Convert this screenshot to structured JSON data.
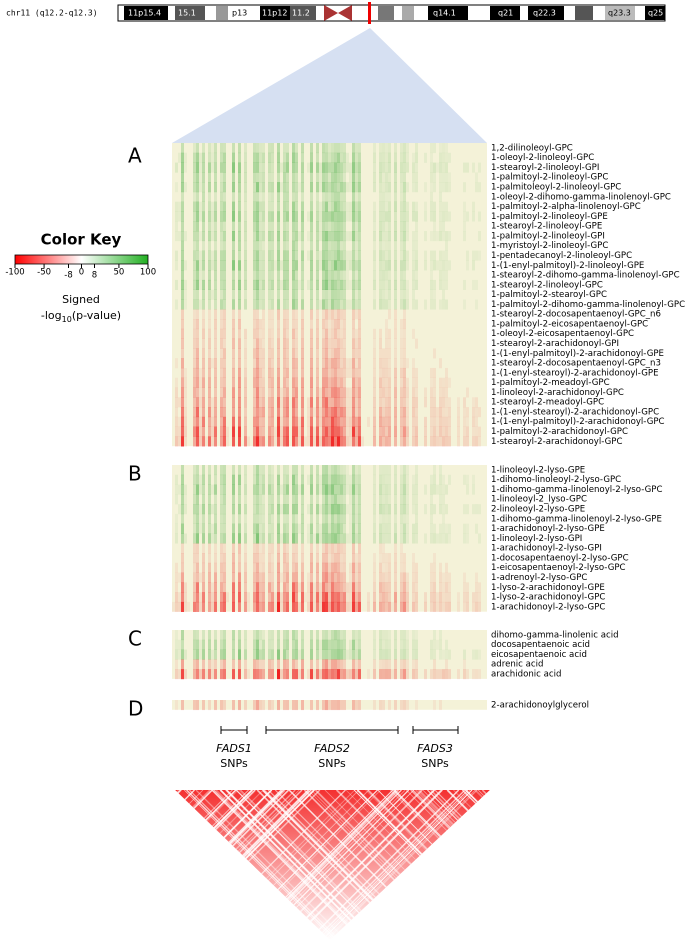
{
  "ideogram": {
    "label": "chr11 (q12.2-q12.3)",
    "bands": [
      "11p15.4",
      "15.1",
      "p13",
      "11p12",
      "11.2",
      "q14.1",
      "q21",
      "q22.3",
      "q23.3",
      "q25"
    ]
  },
  "color_key": {
    "title": "Color Key",
    "ticks": [
      -100,
      -50,
      -8,
      0,
      8,
      50,
      100
    ],
    "caption_line1": "Signed",
    "caption_line2": {
      "prefix": "-log",
      "subscript": "10",
      "suffix": "(p-value)"
    }
  },
  "panels": [
    {
      "label": "A",
      "rows": [
        "1,2-dilinoleoyl-GPC",
        "1-oleoyl-2-linoleoyl-GPC",
        "1-stearoyl-2-linoleoyl-GPI",
        "1-palmitoyl-2-linoleoyl-GPC",
        "1-palmitoleoyl-2-linoleoyl-GPC",
        "1-oleoyl-2-dihomo-gamma-linolenoyl-GPC",
        "1-palmitoyl-2-alpha-linolenoyl-GPC",
        "1-palmitoyl-2-linoleoyl-GPE",
        "1-stearoyl-2-linoleoyl-GPE",
        "1-palmitoyl-2-linoleoyl-GPI",
        "1-myristoyl-2-linoleoyl-GPC",
        "1-pentadecanoyl-2-linoleoyl-GPC",
        "1-(1-enyl-palmitoyl)-2-linoleoyl-GPE",
        "1-stearoyl-2-dihomo-gamma-linolenoyl-GPC",
        "1-stearoyl-2-linoleoyl-GPC",
        "1-palmitoyl-2-stearoyl-GPC",
        "1-palmitoyl-2-dihomo-gamma-linolenoyl-GPC",
        "1-stearoyl-2-docosapentaenoyl-GPC_n6",
        "1-palmitoyl-2-eicosapentaenoyl-GPC",
        "1-oleoyl-2-eicosapentaenoyl-GPC",
        "1-stearoyl-2-arachidonoyl-GPI",
        "1-(1-enyl-palmitoyl)-2-arachidonoyl-GPE",
        "1-stearoyl-2-docosapentaenoyl-GPC_n3",
        "1-(1-enyl-stearoyl)-2-arachidonoyl-GPE",
        "1-palmitoyl-2-meadoyl-GPC",
        "1-linoleoyl-2-arachidonoyl-GPC",
        "1-stearoyl-2-meadoyl-GPC",
        "1-(1-enyl-stearoyl)-2-arachidonoyl-GPC",
        "1-(1-enyl-palmitoyl)-2-arachidonoyl-GPC",
        "1-palmitoyl-2-arachidonoyl-GPC",
        "1-stearoyl-2-arachidonoyl-GPC"
      ]
    },
    {
      "label": "B",
      "rows": [
        "1-linoleoyl-2-lyso-GPE",
        "1-dihomo-linoleoyl-2-lyso-GPC",
        "1-dihomo-gamma-linolenoyl-2-lyso-GPC",
        "1-linoleoyl-2_lyso-GPC",
        "2-linoleoyl-2-lyso-GPE",
        "1-dihomo-gamma-linolenoyl-2-lyso-GPE",
        "1-arachidonoyl-2-lyso-GPE",
        "1-linoleoyl-2-lyso-GPI",
        "1-arachidonoyl-2-lyso-GPI",
        "1-docosapentaenoyl-2-lyso-GPC",
        "1-eicosapentaenoyl-2-lyso-GPC",
        "1-adrenoyl-2-lyso-GPC",
        "1-lyso-2-arachidonoyl-GPE",
        "1-lyso-2-arachidonoyl-GPC",
        "1-arachidonoyl-2-lyso-GPC"
      ]
    },
    {
      "label": "C",
      "rows": [
        "dihomo-gamma-linolenic acid",
        "docosapentaenoic acid",
        "eicosapentaenoic acid",
        "adrenic acid",
        "arachidonic acid"
      ]
    },
    {
      "label": "D",
      "rows": [
        "2-arachidonoylglycerol"
      ]
    }
  ],
  "genes": [
    {
      "name": "FADS1",
      "caption": "SNPs"
    },
    {
      "name": "FADS2",
      "caption": "SNPs"
    },
    {
      "name": "FADS3",
      "caption": "SNPs"
    }
  ]
}
